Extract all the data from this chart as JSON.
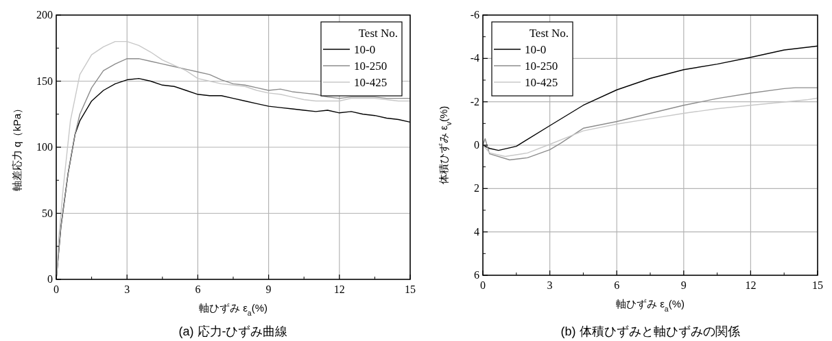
{
  "chart_data": [
    {
      "type": "line",
      "title": "(a) 応力-ひずみ曲線",
      "xlabel": "軸ひずみ ε$_{a}$(%)",
      "ylabel": "軸差応力 q（kPa）",
      "legend_title": "Test No.",
      "legend": "top right",
      "grid": true,
      "xlim": [
        0,
        15
      ],
      "ylim": [
        0,
        200
      ],
      "xticks": [
        0,
        3,
        6,
        9,
        12,
        15
      ],
      "yticks": [
        0,
        50,
        100,
        150,
        200
      ],
      "x": [
        0,
        0.2,
        0.5,
        0.8,
        1,
        1.5,
        2,
        2.5,
        3,
        3.5,
        4,
        4.5,
        5,
        5.5,
        6,
        6.5,
        7,
        7.5,
        8,
        8.5,
        9,
        9.5,
        10,
        10.5,
        11,
        11.5,
        12,
        12.5,
        13,
        13.5,
        14,
        14.5,
        15
      ],
      "series": [
        {
          "name": "10-0",
          "color": "#000000",
          "values": [
            0,
            40,
            80,
            110,
            120,
            135,
            143,
            148,
            151,
            152,
            150,
            147,
            146,
            143,
            140,
            139,
            139,
            137,
            135,
            133,
            131,
            130,
            129,
            128,
            127,
            128,
            126,
            127,
            125,
            124,
            122,
            121,
            119
          ]
        },
        {
          "name": "10-250",
          "color": "#8c8c8c",
          "values": [
            0,
            40,
            80,
            110,
            125,
            145,
            158,
            163,
            167,
            167,
            165,
            163,
            161,
            159,
            157,
            155,
            151,
            148,
            147,
            145,
            143,
            144,
            142,
            141,
            140,
            138,
            137,
            138,
            138,
            138,
            137,
            137,
            137
          ]
        },
        {
          "name": "10-425",
          "color": "#c8c8c8",
          "x": [
            0,
            0.1,
            0.3,
            0.6,
            1,
            1.5,
            2,
            2.5,
            3,
            3.5,
            4,
            4.5,
            5,
            5.5,
            6,
            6.5,
            7,
            7.5,
            8,
            8.5,
            9,
            9.5,
            10,
            10.5,
            11,
            11.5,
            12,
            12.5,
            13,
            13.5,
            14,
            14.5,
            15
          ],
          "values": [
            0,
            30,
            70,
            120,
            155,
            170,
            176,
            180,
            180,
            177,
            172,
            166,
            162,
            158,
            152,
            150,
            148,
            147,
            146,
            143,
            141,
            140,
            138,
            136,
            135,
            135,
            135,
            137,
            137,
            137,
            136,
            135,
            135
          ]
        }
      ]
    },
    {
      "type": "line",
      "title": "(b) 体積ひずみと軸ひずみの関係",
      "xlabel": "軸ひずみ ε$_{a}$(%)",
      "ylabel": "体積ひずみ ε$_{v}$(%)",
      "legend_title": "Test No.",
      "legend": "top left",
      "grid": true,
      "xlim": [
        0,
        15
      ],
      "ylim": [
        6,
        -6
      ],
      "xticks": [
        0,
        3,
        6,
        9,
        12,
        15
      ],
      "yticks": [
        6,
        4,
        2,
        0,
        -2,
        -4,
        -6
      ],
      "series": [
        {
          "name": "10-0",
          "color": "#000000",
          "x": [
            0,
            0.3,
            0.7,
            1.5,
            3,
            4.5,
            6,
            7.5,
            9,
            10.5,
            12,
            13.5,
            15
          ],
          "values": [
            0,
            0.15,
            0.24,
            0.05,
            -0.9,
            -1.84,
            -2.55,
            -3.08,
            -3.48,
            -3.74,
            -4.05,
            -4.39,
            -4.57
          ]
        },
        {
          "name": "10-250",
          "color": "#8c8c8c",
          "x": [
            0,
            0.1,
            0.3,
            1.2,
            2,
            3,
            3.5,
            4.5,
            6,
            7.5,
            9,
            10.5,
            12,
            13.5,
            14,
            15
          ],
          "values": [
            0,
            -0.3,
            0.4,
            0.68,
            0.58,
            0.21,
            -0.1,
            -0.78,
            -1.09,
            -1.47,
            -1.84,
            -2.15,
            -2.4,
            -2.61,
            -2.65,
            -2.65
          ]
        },
        {
          "name": "10-425",
          "color": "#c8c8c8",
          "x": [
            0,
            0.3,
            1,
            2,
            3,
            4.5,
            6,
            7.5,
            9,
            10.5,
            12,
            13.5,
            14.5,
            15
          ],
          "values": [
            0,
            0.35,
            0.52,
            0.36,
            -0.04,
            -0.66,
            -0.97,
            -1.22,
            -1.47,
            -1.68,
            -1.84,
            -1.99,
            -2.09,
            -2.17
          ]
        }
      ]
    }
  ]
}
